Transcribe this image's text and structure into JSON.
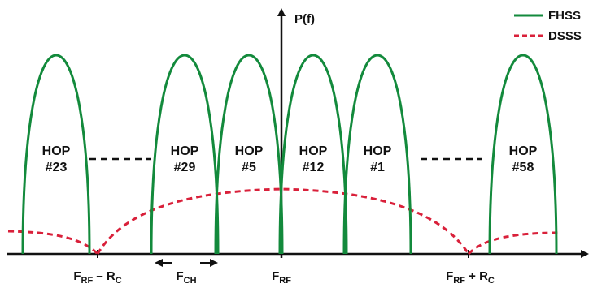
{
  "legend": [
    {
      "key": "fhss",
      "label": "FHSS",
      "color": "#138a3c",
      "style": "solid"
    },
    {
      "key": "dsss",
      "label": "DSSS",
      "color": "#d9203a",
      "style": "dashed"
    }
  ],
  "y_axis_label": "P(f)",
  "hops": [
    {
      "word": "HOP",
      "num": "#23"
    },
    {
      "word": "HOP",
      "num": "#29"
    },
    {
      "word": "HOP",
      "num": "#5"
    },
    {
      "word": "HOP",
      "num": "#12"
    },
    {
      "word": "HOP",
      "num": "#1"
    },
    {
      "word": "HOP",
      "num": "#58"
    }
  ],
  "x_labels": {
    "left": {
      "base": "F",
      "sub": "RF",
      "rest": " – R",
      "sub2": "C"
    },
    "center": {
      "base": "F",
      "sub": "RF"
    },
    "right": {
      "base": "F",
      "sub": "RF",
      "rest": " + R",
      "sub2": "C"
    },
    "channel": {
      "base": "F",
      "sub": "CH"
    }
  },
  "colors": {
    "axis": "#111111",
    "fhss": "#138a3c",
    "dsss": "#d9203a"
  }
}
